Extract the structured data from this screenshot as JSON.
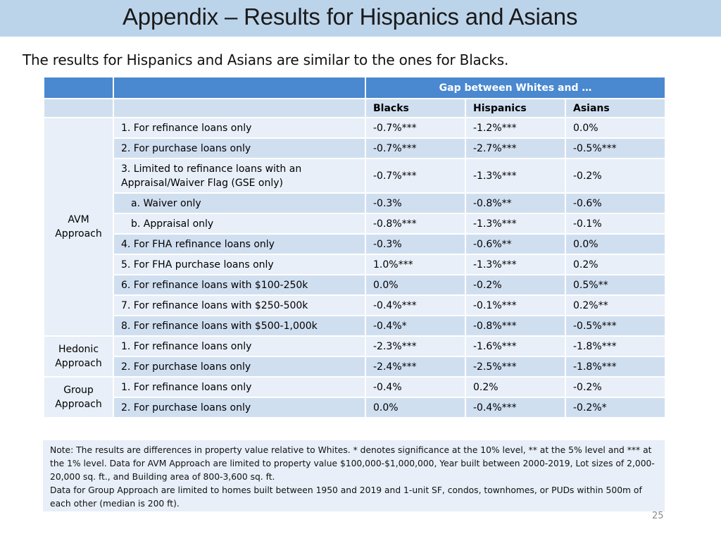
{
  "slide": {
    "title": "Appendix – Results for Hispanics and Asians",
    "subtitle": "The results for Hispanics and Asians are similar to the ones for Blacks.",
    "page_number": "25"
  },
  "table": {
    "header_gap": "Gap between Whites and …",
    "columns": [
      "Blacks",
      "Hispanics",
      "Asians"
    ],
    "groups": [
      {
        "label": "AVM Approach"
      },
      {
        "label": "Hedonic Approach"
      },
      {
        "label": "Group Approach"
      }
    ],
    "rows": [
      {
        "label": "1. For refinance loans only",
        "blacks": "-0.7%***",
        "hispanics": "-1.2%***",
        "asians": "0.0%"
      },
      {
        "label": "2. For purchase loans only",
        "blacks": "-0.7%***",
        "hispanics": "-2.7%***",
        "asians": "-0.5%***"
      },
      {
        "label": "3. Limited to refinance loans with an Appraisal/Waiver Flag (GSE only)",
        "blacks": "-0.7%***",
        "hispanics": "-1.3%***",
        "asians": "-0.2%"
      },
      {
        "label": "a. Waiver only",
        "blacks": "-0.3%",
        "hispanics": "-0.8%**",
        "asians": "-0.6%"
      },
      {
        "label": "b. Appraisal only",
        "blacks": "-0.8%***",
        "hispanics": "-1.3%***",
        "asians": "-0.1%"
      },
      {
        "label": "4. For FHA refinance loans only",
        "blacks": "-0.3%",
        "hispanics": "-0.6%**",
        "asians": "0.0%"
      },
      {
        "label": "5. For FHA purchase loans only",
        "blacks": "1.0%***",
        "hispanics": "-1.3%***",
        "asians": "0.2%"
      },
      {
        "label": "6. For refinance loans with $100-250k",
        "blacks": "0.0%",
        "hispanics": "-0.2%",
        "asians": "0.5%**"
      },
      {
        "label": "7. For refinance loans with $250-500k",
        "blacks": "-0.4%***",
        "hispanics": "-0.1%***",
        "asians": "0.2%**"
      },
      {
        "label": "8. For refinance loans with $500-1,000k",
        "blacks": "-0.4%*",
        "hispanics": "-0.8%***",
        "asians": "-0.5%***"
      },
      {
        "label": "1. For refinance loans only",
        "blacks": "-2.3%***",
        "hispanics": "-1.6%***",
        "asians": "-1.8%***"
      },
      {
        "label": "2. For purchase loans only",
        "blacks": "-2.4%***",
        "hispanics": "-2.5%***",
        "asians": "-1.8%***"
      },
      {
        "label": "1. For refinance loans only",
        "blacks": "-0.4%",
        "hispanics": "0.2%",
        "asians": "-0.2%"
      },
      {
        "label": "2. For purchase loans only",
        "blacks": "0.0%",
        "hispanics": "-0.4%***",
        "asians": "-0.2%*"
      }
    ],
    "note_1": "Note: The results are differences in property value relative to Whites. * denotes significance at the 10% level, ** at the 5% level and *** at the 1% level.  Data for AVM Approach are limited to property value $100,000-$1,000,000, Year built between 2000-2019, Lot sizes of 2,000-20,000 sq. ft., and Building area of 800-3,600 sq. ft.",
    "note_2": "Data for Group Approach are limited to homes built between 1950 and 2019 and 1-unit SF, condos, townhomes, or PUDs within 500m of each other (median is 200 ft)."
  }
}
